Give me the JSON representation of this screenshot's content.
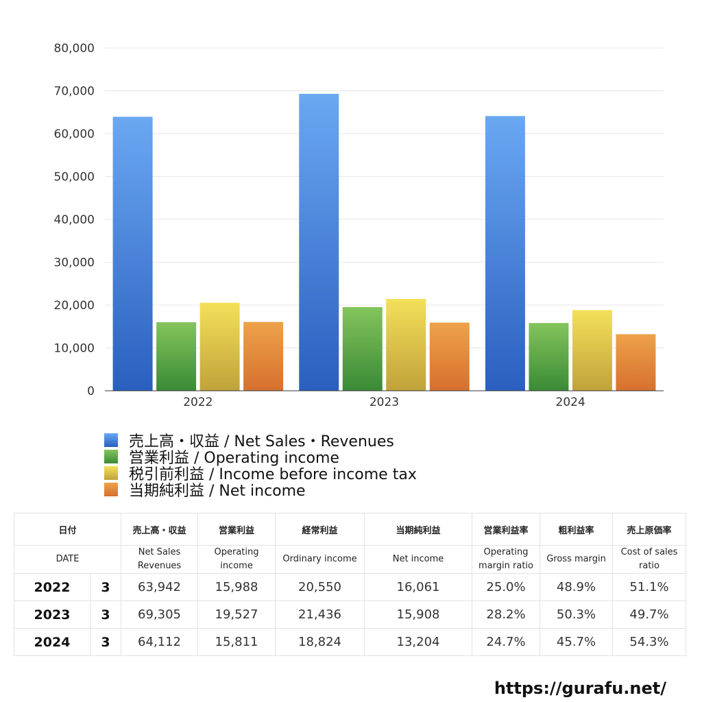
{
  "chart_data": {
    "type": "bar",
    "categories": [
      "2022",
      "2023",
      "2024"
    ],
    "series": [
      {
        "name": "売上高・収益 / Net Sales・Revenues",
        "values": [
          63942,
          69305,
          64112
        ],
        "color_top": "#6aa8f2",
        "color_bottom": "#2a5fbf"
      },
      {
        "name": "営業利益 / Operating income",
        "values": [
          15988,
          19527,
          15811
        ],
        "color_top": "#84c45c",
        "color_bottom": "#3a8a36"
      },
      {
        "name": "税引前利益 / Income before income tax",
        "values": [
          20550,
          21436,
          18824
        ],
        "color_top": "#f4e05a",
        "color_bottom": "#c0a23a"
      },
      {
        "name": "当期純利益 / Net income",
        "values": [
          16061,
          15908,
          13204
        ],
        "color_top": "#eea24a",
        "color_bottom": "#d6702e"
      }
    ],
    "ylim": [
      0,
      80000
    ],
    "yticks": [
      "0",
      "10,000",
      "20,000",
      "30,000",
      "40,000",
      "50,000",
      "60,000",
      "70,000",
      "80,000"
    ],
    "grid": true,
    "legend_position": "bottom-left"
  },
  "table": {
    "headers_ja": [
      "日付",
      "売上高・収益",
      "営業利益",
      "経常利益",
      "当期純利益",
      "営業利益率",
      "粗利益率",
      "売上原価率"
    ],
    "headers_en": [
      "DATE",
      "Net Sales Revenues",
      "Operating income",
      "Ordinary income",
      "Net income",
      "Operating margin ratio",
      "Gross margin",
      "Cost of sales ratio"
    ],
    "rows": [
      {
        "year": "2022",
        "month": "3",
        "cells": [
          "63,942",
          "15,988",
          "20,550",
          "16,061",
          "25.0%",
          "48.9%",
          "51.1%"
        ]
      },
      {
        "year": "2023",
        "month": "3",
        "cells": [
          "69,305",
          "19,527",
          "21,436",
          "15,908",
          "28.2%",
          "50.3%",
          "49.7%"
        ]
      },
      {
        "year": "2024",
        "month": "3",
        "cells": [
          "64,112",
          "15,811",
          "18,824",
          "13,204",
          "24.7%",
          "45.7%",
          "54.3%"
        ]
      }
    ]
  },
  "watermark": "https://gurafu.net/"
}
